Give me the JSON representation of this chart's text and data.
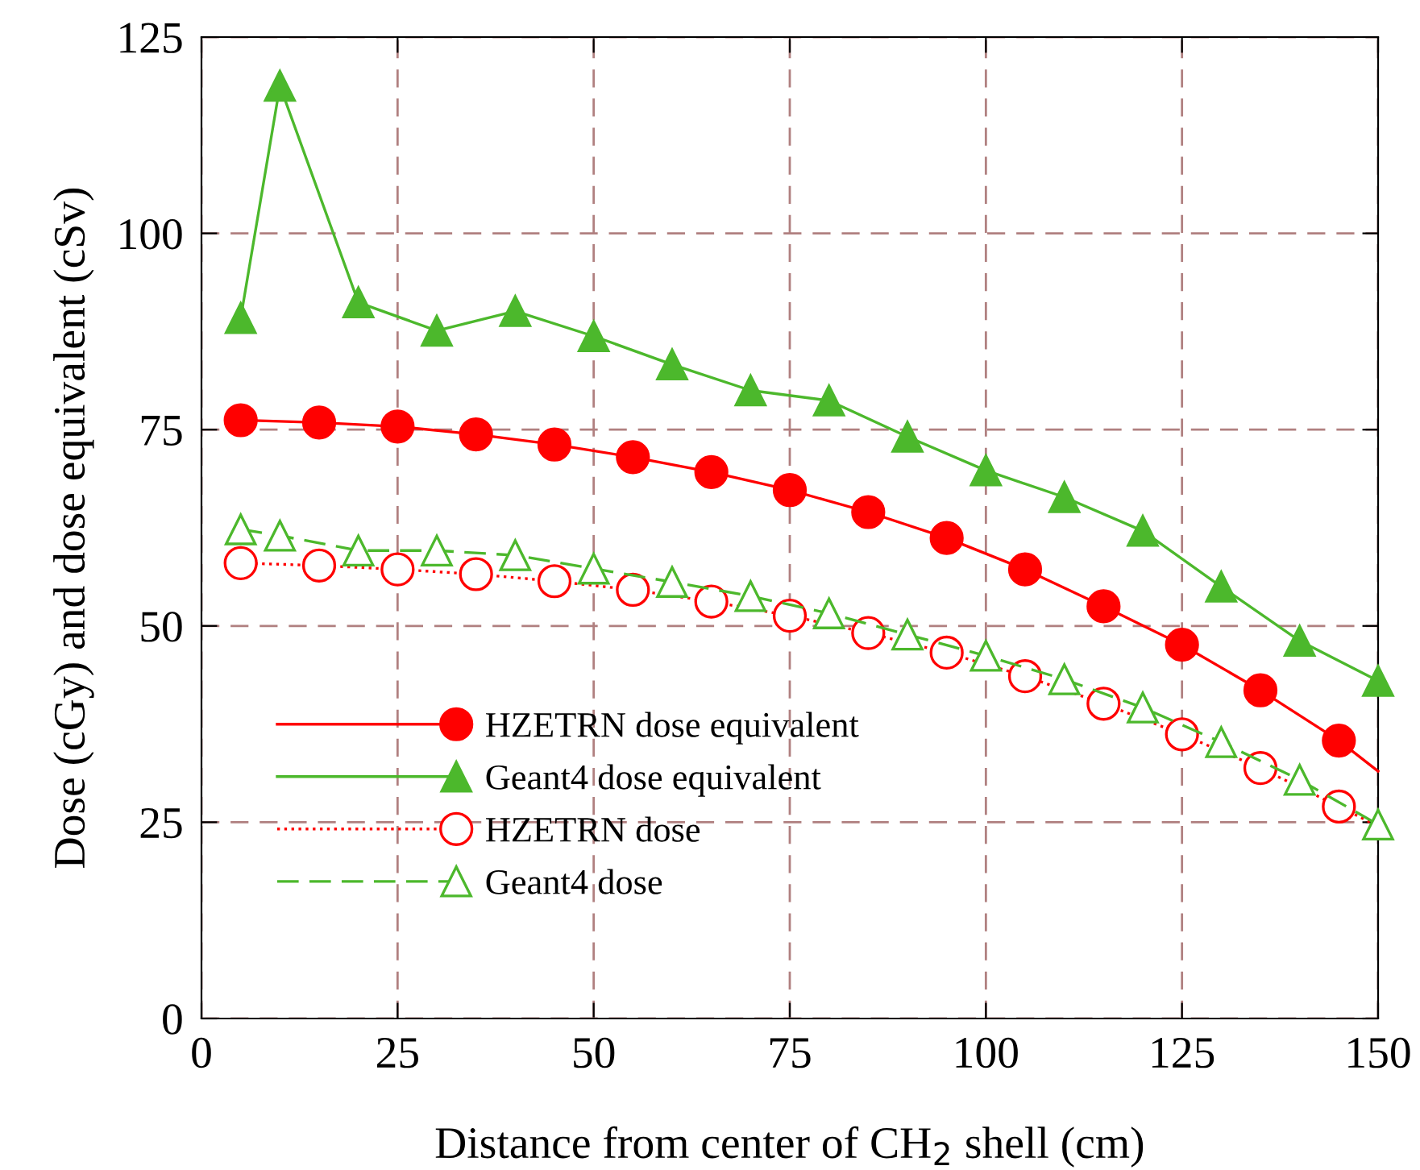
{
  "chart_data": {
    "type": "line",
    "xlabel": "Distance from center of CH$_{2}$ shell (cm)",
    "ylabel": "Dose (cGy) and dose equivalent (cSv)",
    "xlim": [
      0,
      150
    ],
    "xticks": [
      0,
      25,
      50,
      75,
      100,
      125,
      150
    ],
    "ylim": [
      0,
      125
    ],
    "yticks": [
      0,
      25,
      50,
      75,
      100,
      125
    ],
    "grid": true,
    "legend": "bottom left",
    "series": [
      {
        "name": "HZETRN dose equivalent",
        "color": "#ff0000",
        "marker": "circle",
        "line_style": "solid",
        "x": [
          5,
          15,
          25,
          35,
          45,
          55,
          65,
          75,
          85,
          95,
          105,
          115,
          125,
          135,
          145,
          150
        ],
        "values": [
          76.2,
          75.9,
          75.4,
          74.4,
          73.1,
          71.5,
          69.6,
          67.3,
          64.5,
          61.2,
          57.2,
          52.5,
          47.6,
          41.8,
          35.4,
          31.5
        ]
      },
      {
        "name": "Geant4 dose equivalent",
        "color": "#4cb82c",
        "marker": "triangle",
        "line_style": "solid",
        "x": [
          5,
          10,
          20,
          30,
          40,
          50,
          60,
          70,
          80,
          90,
          100,
          110,
          120,
          130,
          140,
          150
        ],
        "values": [
          89.2,
          118.8,
          91.2,
          87.6,
          90.1,
          86.9,
          83.3,
          80.0,
          78.7,
          74.1,
          69.8,
          66.4,
          62.1,
          55.0,
          48.1,
          43.0
        ]
      },
      {
        "name": "HZETRN dose",
        "color": "#ff0000",
        "marker": "circle",
        "line_style": "dotted",
        "x": [
          5,
          15,
          25,
          35,
          45,
          55,
          65,
          75,
          85,
          95,
          105,
          115,
          125,
          135,
          145,
          150
        ],
        "values": [
          58.0,
          57.7,
          57.2,
          56.6,
          55.7,
          54.6,
          53.1,
          51.3,
          49.1,
          46.6,
          43.6,
          40.1,
          36.2,
          31.9,
          27.0,
          24.5
        ]
      },
      {
        "name": "Geant4 dose",
        "color": "#4cb82c",
        "marker": "triangle",
        "line_style": "dashed",
        "x": [
          5,
          10,
          20,
          30,
          40,
          50,
          60,
          70,
          80,
          90,
          100,
          110,
          120,
          130,
          140,
          150
        ],
        "values": [
          62.3,
          61.5,
          59.6,
          59.6,
          59.0,
          57.3,
          55.6,
          53.8,
          51.6,
          48.9,
          46.2,
          43.2,
          39.6,
          35.2,
          30.4,
          24.7
        ]
      }
    ]
  }
}
